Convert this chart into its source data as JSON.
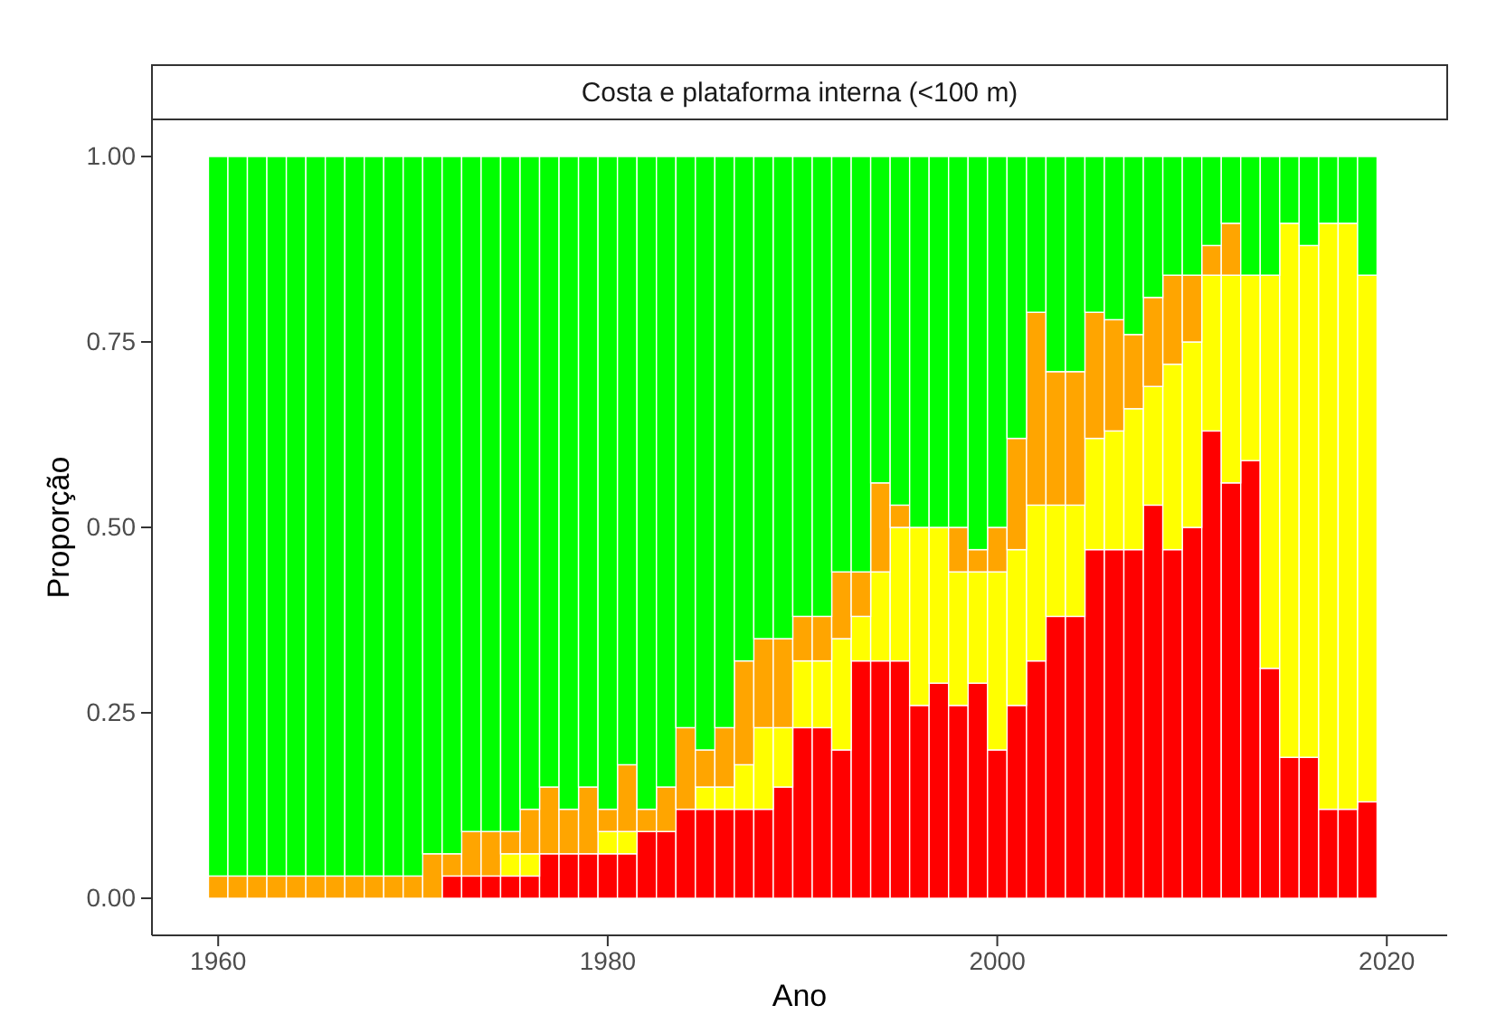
{
  "chart_data": {
    "type": "bar",
    "title": "Costa e plataforma interna (<100 m)",
    "xlabel": "Ano",
    "ylabel": "Proporção",
    "stacked": true,
    "grid": false,
    "legend": false,
    "x": [
      1960,
      1961,
      1962,
      1963,
      1964,
      1965,
      1966,
      1967,
      1968,
      1969,
      1970,
      1971,
      1972,
      1973,
      1974,
      1975,
      1976,
      1977,
      1978,
      1979,
      1980,
      1981,
      1982,
      1983,
      1984,
      1985,
      1986,
      1987,
      1988,
      1989,
      1990,
      1991,
      1992,
      1993,
      1994,
      1995,
      1996,
      1997,
      1998,
      1999,
      2000,
      2001,
      2002,
      2003,
      2004,
      2005,
      2006,
      2007,
      2008,
      2009,
      2010,
      2011,
      2012,
      2013,
      2014,
      2015,
      2016,
      2017,
      2018,
      2019
    ],
    "xlim": [
      1956.6,
      2023.1
    ],
    "xticks": [
      1960,
      1980,
      2000,
      2020
    ],
    "ylim": [
      -0.05,
      1.05
    ],
    "yticks": [
      {
        "value": 0,
        "label": "0.00"
      },
      {
        "value": 0.25,
        "label": "0.25"
      },
      {
        "value": 0.5,
        "label": "0.50"
      },
      {
        "value": 0.75,
        "label": "0.75"
      },
      {
        "value": 1,
        "label": "1.00"
      }
    ],
    "series": [
      {
        "color": "#ff0000",
        "values": [
          0,
          0,
          0,
          0,
          0,
          0,
          0,
          0,
          0,
          0,
          0,
          0,
          0.03,
          0.03,
          0.03,
          0.03,
          0.03,
          0.06,
          0.06,
          0.06,
          0.06,
          0.06,
          0.09,
          0.09,
          0.12,
          0.12,
          0.12,
          0.12,
          0.12,
          0.15,
          0.23,
          0.23,
          0.2,
          0.32,
          0.32,
          0.32,
          0.26,
          0.29,
          0.26,
          0.29,
          0.2,
          0.26,
          0.32,
          0.38,
          0.38,
          0.47,
          0.47,
          0.47,
          0.53,
          0.47,
          0.5,
          0.63,
          0.56,
          0.59,
          0.31,
          0.19,
          0.19,
          0.12,
          0.12,
          0.13
        ]
      },
      {
        "color": "#ffff00",
        "values": [
          0,
          0,
          0,
          0,
          0,
          0,
          0,
          0,
          0,
          0,
          0,
          0,
          0,
          0,
          0,
          0.03,
          0.03,
          0,
          0,
          0,
          0.03,
          0.03,
          0,
          0,
          0,
          0.03,
          0.03,
          0.06,
          0.11,
          0.08,
          0.09,
          0.09,
          0.15,
          0.06,
          0.12,
          0.18,
          0.24,
          0.21,
          0.18,
          0.15,
          0.24,
          0.21,
          0.21,
          0.15,
          0.15,
          0.15,
          0.16,
          0.19,
          0.16,
          0.25,
          0.25,
          0.21,
          0.28,
          0.25,
          0.53,
          0.72,
          0.69,
          0.79,
          0.79,
          0.71
        ]
      },
      {
        "color": "#ffa500",
        "values": [
          0.03,
          0.03,
          0.03,
          0.03,
          0.03,
          0.03,
          0.03,
          0.03,
          0.03,
          0.03,
          0.03,
          0.06,
          0.03,
          0.06,
          0.06,
          0.03,
          0.06,
          0.09,
          0.06,
          0.09,
          0.03,
          0.09,
          0.03,
          0.06,
          0.11,
          0.05,
          0.08,
          0.14,
          0.12,
          0.12,
          0.06,
          0.06,
          0.09,
          0.06,
          0.12,
          0.03,
          0,
          0,
          0.06,
          0.03,
          0.06,
          0.15,
          0.26,
          0.18,
          0.18,
          0.17,
          0.15,
          0.1,
          0.12,
          0.12,
          0.09,
          0.04,
          0.07,
          0,
          0,
          0,
          0,
          0,
          0,
          0
        ]
      },
      {
        "color": "#00ff00",
        "values": [
          0.97,
          0.97,
          0.97,
          0.97,
          0.97,
          0.97,
          0.97,
          0.97,
          0.97,
          0.97,
          0.97,
          0.94,
          0.94,
          0.91,
          0.91,
          0.91,
          0.88,
          0.85,
          0.88,
          0.85,
          0.88,
          0.82,
          0.88,
          0.85,
          0.77,
          0.8,
          0.77,
          0.68,
          0.65,
          0.65,
          0.62,
          0.62,
          0.56,
          0.56,
          0.44,
          0.47,
          0.5,
          0.5,
          0.5,
          0.53,
          0.5,
          0.38,
          0.21,
          0.29,
          0.29,
          0.21,
          0.22,
          0.24,
          0.19,
          0.16,
          0.16,
          0.12,
          0.09,
          0.16,
          0.16,
          0.09,
          0.12,
          0.09,
          0.09,
          0.16
        ]
      }
    ]
  }
}
